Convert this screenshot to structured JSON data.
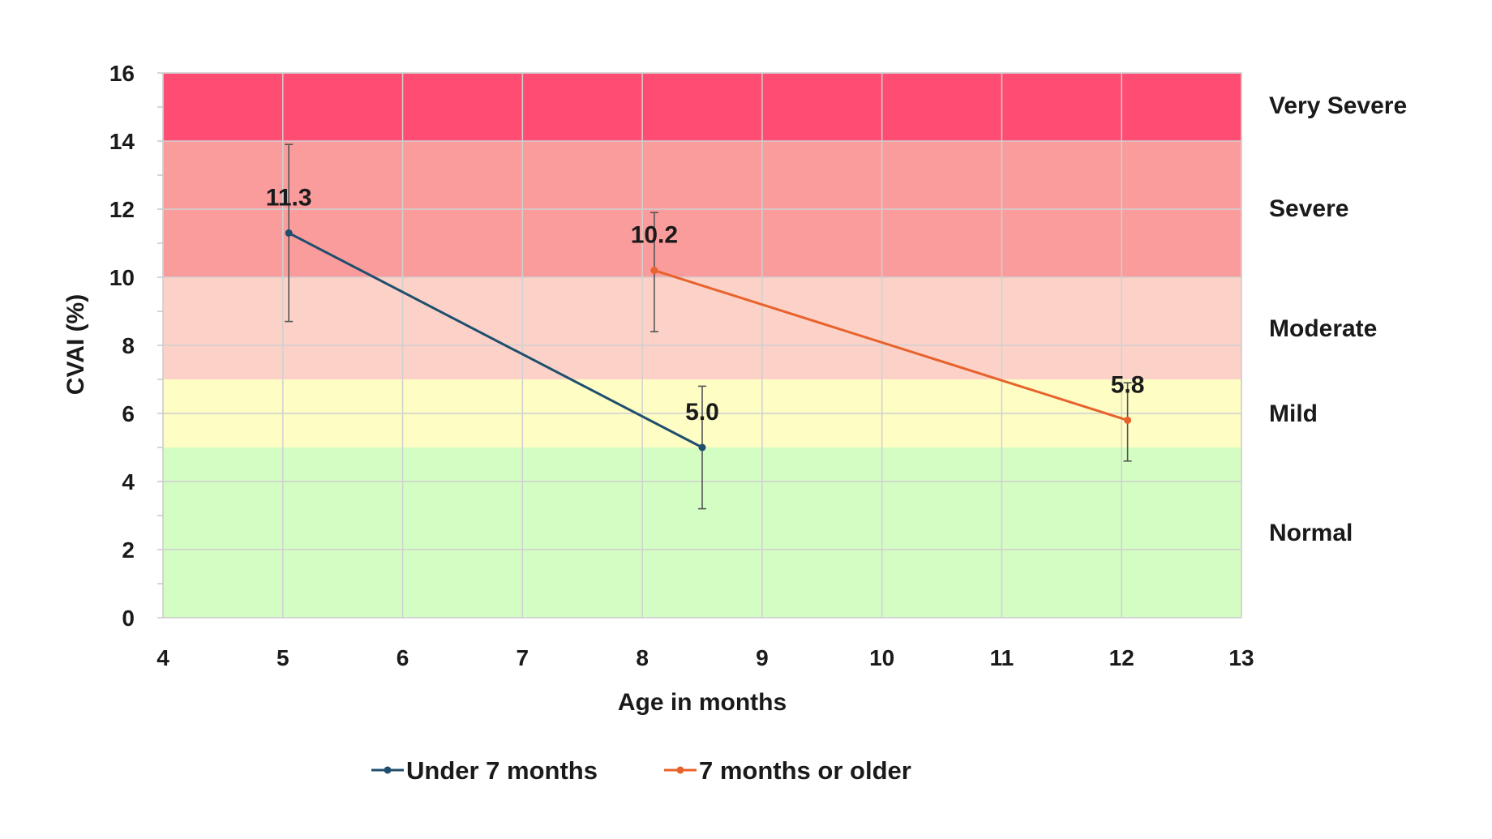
{
  "chart_data": {
    "type": "line",
    "xlabel": "Age in months",
    "ylabel": "CVAI (%)",
    "xlim": [
      4,
      13
    ],
    "ylim": [
      0,
      16
    ],
    "x_ticks": [
      4,
      5,
      6,
      7,
      8,
      9,
      10,
      11,
      12,
      13
    ],
    "y_ticks": [
      0,
      2,
      4,
      6,
      8,
      10,
      12,
      14,
      16
    ],
    "grid": true,
    "legend_position": "bottom",
    "bands": [
      {
        "label": "Normal",
        "from": 0,
        "to": 5,
        "color": "#d4fdc4"
      },
      {
        "label": "Mild",
        "from": 5,
        "to": 7,
        "color": "#fdfdc4"
      },
      {
        "label": "Moderate",
        "from": 7,
        "to": 10,
        "color": "#fcd2c8"
      },
      {
        "label": "Severe",
        "from": 10,
        "to": 14,
        "color": "#fa9c9c"
      },
      {
        "label": "Very Severe",
        "from": 14,
        "to": 16,
        "color": "#ff4c72"
      }
    ],
    "series": [
      {
        "name": "Under 7 months",
        "color": "#1f4e6e",
        "points": [
          {
            "x": 5.05,
            "y": 11.3,
            "err_low": 8.7,
            "err_high": 13.9,
            "label": "11.3"
          },
          {
            "x": 8.5,
            "y": 5.0,
            "err_low": 3.2,
            "err_high": 6.8,
            "label": "5.0"
          }
        ]
      },
      {
        "name": "7 months or older",
        "color": "#e8622c",
        "points": [
          {
            "x": 8.1,
            "y": 10.2,
            "err_low": 8.4,
            "err_high": 11.9,
            "label": "10.2"
          },
          {
            "x": 12.05,
            "y": 5.8,
            "err_low": 4.6,
            "err_high": 6.9,
            "label": "5.8"
          }
        ]
      }
    ]
  }
}
